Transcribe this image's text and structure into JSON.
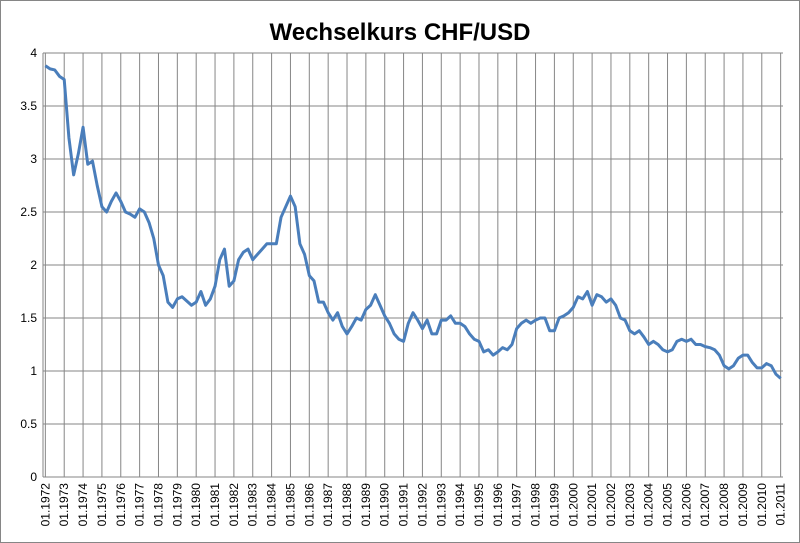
{
  "chart_data": {
    "type": "line",
    "title": "Wechselkurs CHF/USD",
    "categories": [
      "01.1972",
      null,
      null,
      null,
      "01.1973",
      null,
      null,
      null,
      "01.1974",
      null,
      null,
      null,
      "01.1975",
      null,
      null,
      null,
      "01.1976",
      null,
      null,
      null,
      "01.1977",
      null,
      null,
      null,
      "01.1978",
      null,
      null,
      null,
      "01.1979",
      null,
      null,
      null,
      "01.1980",
      null,
      null,
      null,
      "01.1981",
      null,
      null,
      null,
      "01.1982",
      null,
      null,
      null,
      "01.1983",
      null,
      null,
      null,
      "01.1984",
      null,
      null,
      null,
      "01.1985",
      null,
      null,
      null,
      "01.1986",
      null,
      null,
      null,
      "01.1987",
      null,
      null,
      null,
      "01.1988",
      null,
      null,
      null,
      "01.1989",
      null,
      null,
      null,
      "01.1990",
      null,
      null,
      null,
      "01.1991",
      null,
      null,
      null,
      "01.1992",
      null,
      null,
      null,
      "01.1993",
      null,
      null,
      null,
      "01.1994",
      null,
      null,
      null,
      "01.1995",
      null,
      null,
      null,
      "01.1996",
      null,
      null,
      null,
      "01.1997",
      null,
      null,
      null,
      "01.1998",
      null,
      null,
      null,
      "01.1999",
      null,
      null,
      null,
      "01.2000",
      null,
      null,
      null,
      "01.2001",
      null,
      null,
      null,
      "01.2002",
      null,
      null,
      null,
      "01.2003",
      null,
      null,
      null,
      "01.2004",
      null,
      null,
      null,
      "01.2005",
      null,
      null,
      null,
      "01.2006",
      null,
      null,
      null,
      "01.2007",
      null,
      null,
      null,
      "01.2008",
      null,
      null,
      null,
      "01.2009",
      null,
      null,
      null,
      "01.2010",
      null,
      null,
      null,
      "01.2011"
    ],
    "values": [
      3.88,
      3.85,
      3.84,
      3.78,
      3.75,
      3.2,
      2.85,
      3.05,
      3.3,
      2.95,
      2.98,
      2.75,
      2.55,
      2.5,
      2.6,
      2.68,
      2.6,
      2.5,
      2.48,
      2.45,
      2.53,
      2.5,
      2.4,
      2.25,
      2.0,
      1.9,
      1.65,
      1.6,
      1.68,
      1.7,
      1.66,
      1.62,
      1.65,
      1.75,
      1.62,
      1.68,
      1.8,
      2.05,
      2.15,
      1.8,
      1.85,
      2.05,
      2.12,
      2.15,
      2.05,
      2.1,
      2.15,
      2.2,
      2.2,
      2.2,
      2.45,
      2.55,
      2.65,
      2.55,
      2.2,
      2.1,
      1.9,
      1.85,
      1.65,
      1.65,
      1.55,
      1.48,
      1.55,
      1.42,
      1.35,
      1.42,
      1.5,
      1.48,
      1.58,
      1.62,
      1.72,
      1.62,
      1.52,
      1.45,
      1.35,
      1.3,
      1.28,
      1.45,
      1.55,
      1.48,
      1.4,
      1.48,
      1.35,
      1.35,
      1.48,
      1.48,
      1.52,
      1.45,
      1.45,
      1.42,
      1.35,
      1.3,
      1.28,
      1.18,
      1.2,
      1.15,
      1.18,
      1.22,
      1.2,
      1.25,
      1.4,
      1.45,
      1.48,
      1.45,
      1.48,
      1.5,
      1.5,
      1.38,
      1.38,
      1.5,
      1.52,
      1.55,
      1.6,
      1.7,
      1.68,
      1.75,
      1.62,
      1.72,
      1.7,
      1.65,
      1.68,
      1.62,
      1.5,
      1.48,
      1.38,
      1.35,
      1.38,
      1.32,
      1.25,
      1.28,
      1.25,
      1.2,
      1.18,
      1.2,
      1.28,
      1.3,
      1.28,
      1.3,
      1.25,
      1.25,
      1.23,
      1.22,
      1.2,
      1.15,
      1.05,
      1.02,
      1.05,
      1.12,
      1.15,
      1.15,
      1.08,
      1.03,
      1.03,
      1.07,
      1.05,
      0.97,
      0.93
    ],
    "color": "#4a7ebb",
    "ylim": [
      0,
      4
    ],
    "yticks": [
      0,
      0.5,
      1,
      1.5,
      2,
      2.5,
      3,
      3.5,
      4
    ],
    "grid": true
  }
}
